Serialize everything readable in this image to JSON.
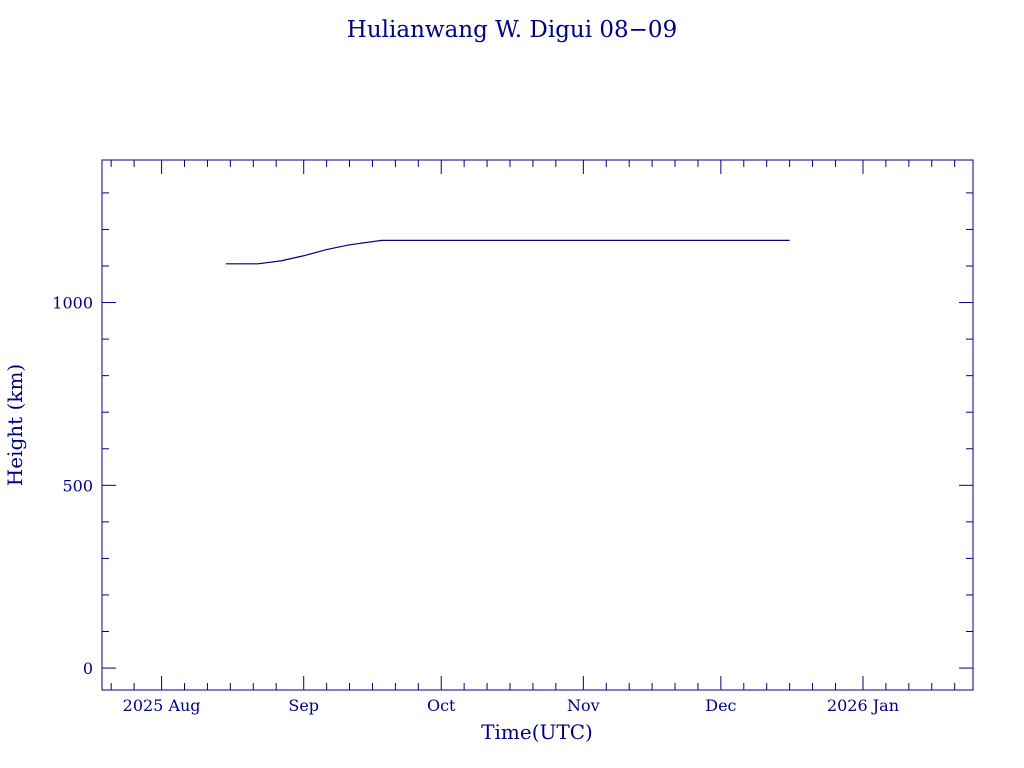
{
  "chart_data": {
    "type": "line",
    "title": "Hulianwang W. Digui 08−09",
    "xlabel": "Time(UTC)",
    "ylabel": "Height (km)",
    "x_range": [
      "2025-07-19",
      "2026-01-25"
    ],
    "ylim": [
      -60,
      1390
    ],
    "x_major_ticks": [
      {
        "date": "2025-08-01",
        "label": "2025 Aug"
      },
      {
        "date": "2025-09-01",
        "label": "Sep"
      },
      {
        "date": "2025-10-01",
        "label": "Oct"
      },
      {
        "date": "2025-11-01",
        "label": "Nov"
      },
      {
        "date": "2025-12-01",
        "label": "Dec"
      },
      {
        "date": "2026-01-01",
        "label": "2026 Jan"
      }
    ],
    "y_major_ticks": [
      {
        "value": 0,
        "label": "0"
      },
      {
        "value": 500,
        "label": "500"
      },
      {
        "value": 1000,
        "label": "1000"
      }
    ],
    "y_minor_step": 100,
    "grid": false,
    "color": "#000080",
    "series": [
      {
        "x": [
          "2025-08-15",
          "2025-08-22",
          "2025-08-27",
          "2025-09-01",
          "2025-09-06",
          "2025-09-11",
          "2025-09-18",
          "2025-10-01",
          "2025-11-01",
          "2025-12-01",
          "2025-12-16"
        ],
        "y": [
          1106,
          1106,
          1114,
          1128,
          1145,
          1158,
          1170,
          1170,
          1170,
          1170,
          1170
        ]
      }
    ]
  }
}
